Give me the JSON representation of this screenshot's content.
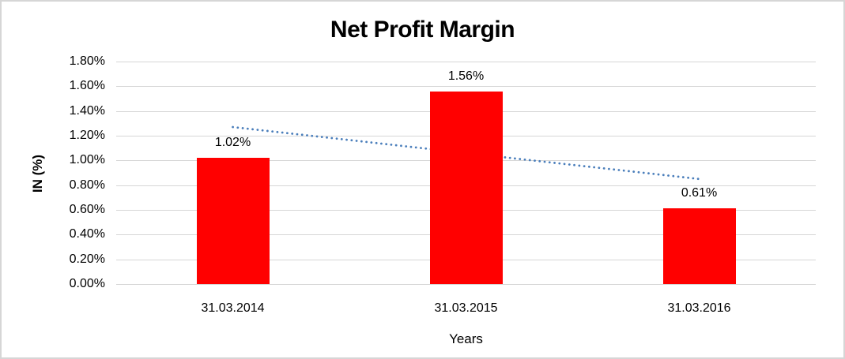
{
  "chart_data": {
    "type": "bar",
    "title": "Net Profit Margin",
    "xlabel": "Years",
    "ylabel": "IN (%)",
    "categories": [
      "31.03.2014",
      "31.03.2015",
      "31.03.2016"
    ],
    "values": [
      1.02,
      1.56,
      0.61
    ],
    "data_labels": [
      "1.02%",
      "1.56%",
      "0.61%"
    ],
    "ylim": [
      0,
      1.8
    ],
    "ytick_step": 0.2,
    "ytick_labels": [
      "0.00%",
      "0.20%",
      "0.40%",
      "0.60%",
      "0.80%",
      "1.00%",
      "1.20%",
      "1.40%",
      "1.60%",
      "1.80%"
    ],
    "grid": true,
    "legend_position": "none",
    "bar_color": "#FF0000",
    "gridline_color": "#D6D6D6",
    "trendline": {
      "style": "dotted",
      "color": "#4A7EBB",
      "start_value": 1.27,
      "end_value": 0.85
    }
  }
}
